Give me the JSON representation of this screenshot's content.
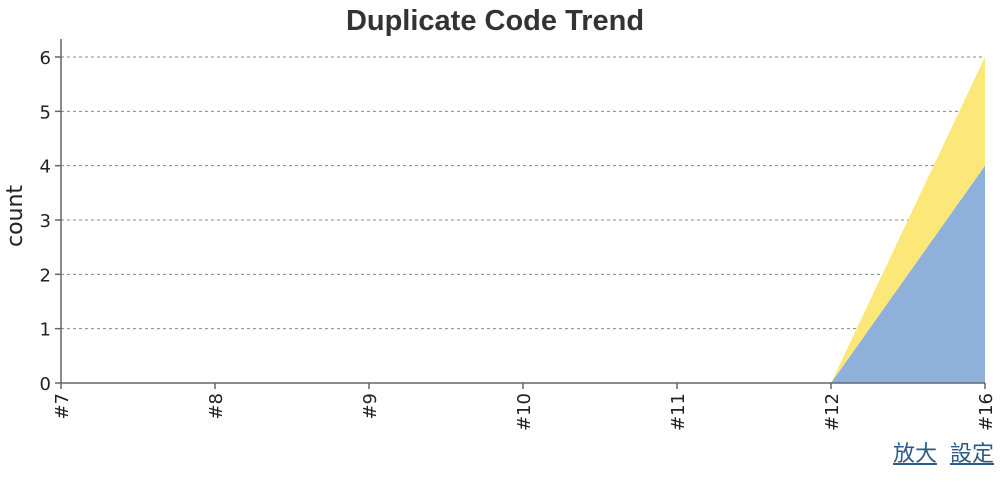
{
  "chart_data": {
    "type": "area",
    "stacked": true,
    "title": "Duplicate Code Trend",
    "xlabel": "",
    "ylabel": "count",
    "categories": [
      "#7",
      "#8",
      "#9",
      "#10",
      "#11",
      "#12",
      "#16"
    ],
    "series": [
      {
        "values": [
          0,
          0,
          0,
          0,
          0,
          0,
          4
        ],
        "color": "#8eb0db"
      },
      {
        "values": [
          0,
          0,
          0,
          0,
          0,
          0,
          2
        ],
        "color": "#fce878"
      }
    ],
    "ylim": [
      0,
      6
    ],
    "yticks": [
      0,
      1,
      2,
      3,
      4,
      5,
      6
    ],
    "grid": true
  },
  "links": {
    "zoom": "放大",
    "settings": "設定"
  }
}
